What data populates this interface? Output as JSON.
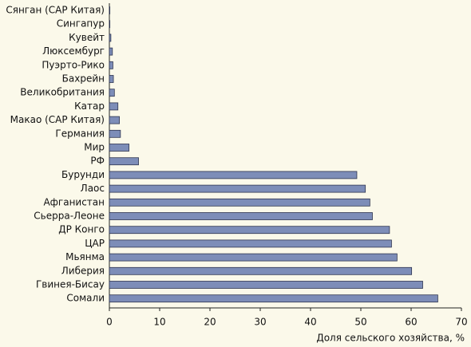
{
  "chart_data": {
    "type": "bar",
    "orientation": "horizontal",
    "x_label": "Доля сельского хозяйства, %",
    "categories": [
      "Сянган (САР Китая)",
      "Сингапур",
      "Кувейт",
      "Люксембург",
      "Пуэрто-Рико",
      "Бахрейн",
      "Великобритания",
      "Катар",
      "Макао (САР Китая)",
      "Германия",
      "Мир",
      "РФ",
      "Бурунди",
      "Лаос",
      "Афганистан",
      "Сьерра-Леоне",
      "ДР Конго",
      "ЦАР",
      "Мьянма",
      "Либерия",
      "Гвинея-Бисау",
      "Сомали"
    ],
    "values": [
      0.1,
      0.1,
      0.3,
      0.6,
      0.7,
      0.8,
      1,
      1.7,
      2,
      2.2,
      3.9,
      5.8,
      49.2,
      50.9,
      51.8,
      52.3,
      55.7,
      56.1,
      57.2,
      60.1,
      62.3,
      65.3
    ],
    "color": "#7d8db8",
    "xlim": [
      0,
      70
    ],
    "xticks": [
      0,
      10,
      20,
      30,
      40,
      50,
      60,
      70
    ]
  }
}
